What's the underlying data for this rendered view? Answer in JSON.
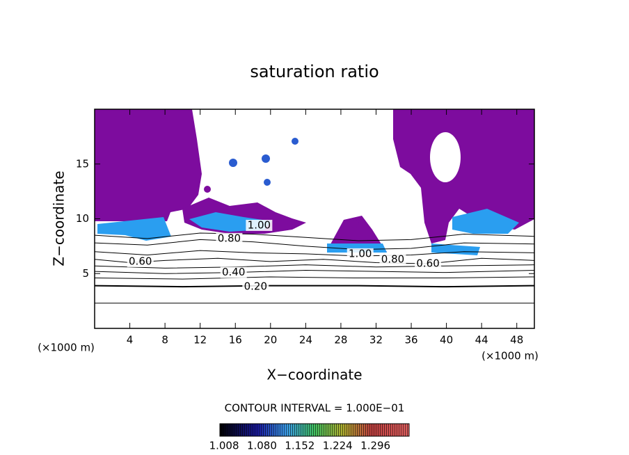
{
  "chart_data": {
    "type": "contour",
    "title": "saturation ratio",
    "x_label": "X−coordinate",
    "y_label": "Z−coordinate",
    "unit_label": "(×1000 m)",
    "xlim": [
      0,
      50
    ],
    "ylim": [
      0,
      20
    ],
    "xticks": [
      4,
      8,
      12,
      16,
      20,
      24,
      28,
      32,
      36,
      40,
      44,
      48
    ],
    "yticks": [
      5,
      10,
      15
    ],
    "contours": [
      {
        "level": 0.1,
        "x": [
          0,
          10,
          20,
          30,
          40,
          50
        ],
        "y": [
          2.3,
          2.3,
          2.3,
          2.3,
          2.3,
          2.3
        ]
      },
      {
        "level": 0.2,
        "x": [
          0,
          10,
          20,
          30,
          40,
          50
        ],
        "y": [
          3.9,
          3.8,
          3.9,
          3.9,
          3.8,
          3.9
        ]
      },
      {
        "level": 0.3,
        "x": [
          0,
          10,
          20,
          30,
          40,
          50
        ],
        "y": [
          4.6,
          4.5,
          4.7,
          4.6,
          4.6,
          4.7
        ]
      },
      {
        "level": 0.4,
        "x": [
          0,
          8,
          16,
          24,
          32,
          40,
          50
        ],
        "y": [
          5.2,
          5.0,
          5.1,
          5.3,
          5.2,
          5.1,
          5.3
        ]
      },
      {
        "level": 0.5,
        "x": [
          0,
          8,
          16,
          24,
          32,
          40,
          50
        ],
        "y": [
          5.7,
          5.5,
          5.6,
          5.8,
          5.6,
          5.7,
          5.8
        ]
      },
      {
        "level": 0.6,
        "x": [
          0,
          4,
          8,
          14,
          20,
          26,
          32,
          38,
          44,
          50
        ],
        "y": [
          6.3,
          6.0,
          6.2,
          6.4,
          6.1,
          6.3,
          6.0,
          5.9,
          6.4,
          6.2
        ]
      },
      {
        "level": 0.7,
        "x": [
          0,
          6,
          12,
          18,
          24,
          30,
          36,
          42,
          50
        ],
        "y": [
          7.0,
          6.7,
          7.1,
          6.9,
          6.8,
          6.6,
          6.7,
          7.0,
          6.9
        ]
      },
      {
        "level": 0.8,
        "x": [
          0,
          6,
          12,
          18,
          24,
          30,
          36,
          42,
          50
        ],
        "y": [
          7.8,
          7.6,
          8.1,
          7.9,
          7.5,
          7.2,
          7.3,
          7.8,
          7.7
        ]
      },
      {
        "level": 0.9,
        "x": [
          0,
          6,
          12,
          18,
          24,
          30,
          36,
          42,
          50
        ],
        "y": [
          8.5,
          8.2,
          8.7,
          8.6,
          8.3,
          8.0,
          8.1,
          8.6,
          8.4
        ]
      }
    ],
    "contour_labels": [
      {
        "x": 18.3,
        "y": 3.8,
        "level": {
          "value": 0.2,
          "label": "0.20"
        }
      },
      {
        "x": 15.8,
        "y": 5.1,
        "level": {
          "value": 0.4,
          "label": "0.40"
        }
      },
      {
        "x": 5.2,
        "y": 6.1,
        "level": {
          "value": 0.6,
          "label": "0.60"
        }
      },
      {
        "x": 15.3,
        "y": 8.2,
        "level": {
          "value": 0.8,
          "label": "0.80"
        }
      },
      {
        "x": 18.7,
        "y": 9.4,
        "level": {
          "value": 1.0,
          "label": "1.00"
        }
      },
      {
        "x": 30.2,
        "y": 6.8,
        "level": {
          "value": 1.0,
          "label": "1.00"
        }
      },
      {
        "x": 33.9,
        "y": 6.3,
        "level": {
          "value": 0.8,
          "label": "0.80"
        }
      },
      {
        "x": 37.9,
        "y": 5.9,
        "level": {
          "value": 0.6,
          "label": "0.60"
        }
      }
    ],
    "contour_interval_label": "CONTOUR INTERVAL = 1.000E−01",
    "colorbar": {
      "lim": [
        1.0,
        1.36
      ],
      "ticks": [
        {
          "value": 1.008,
          "label": "1.008"
        },
        {
          "value": 1.08,
          "label": "1.080"
        },
        {
          "value": 1.152,
          "label": "1.152"
        },
        {
          "value": 1.224,
          "label": "1.224"
        },
        {
          "value": 1.296,
          "label": "1.296"
        }
      ]
    }
  }
}
